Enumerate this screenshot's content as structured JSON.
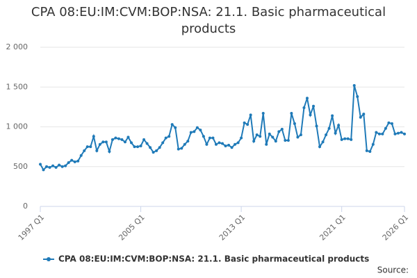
{
  "chart_data": {
    "type": "line",
    "title": "CPA 08:EU:IM:CVM:BOP:NSA: 21.1. Basic pharmaceutical products",
    "source": "Source:",
    "categories": [
      "1997 Q1",
      null,
      null,
      null,
      null,
      null,
      null,
      null,
      null,
      null,
      null,
      null,
      null,
      null,
      null,
      null,
      null,
      null,
      null,
      null,
      null,
      null,
      null,
      null,
      null,
      null,
      null,
      null,
      null,
      null,
      null,
      null,
      "2005 Q1",
      null,
      null,
      null,
      null,
      null,
      null,
      null,
      null,
      null,
      null,
      null,
      null,
      null,
      null,
      null,
      null,
      null,
      null,
      null,
      null,
      null,
      null,
      null,
      null,
      null,
      null,
      null,
      null,
      null,
      null,
      null,
      "2013 Q1",
      null,
      null,
      null,
      null,
      null,
      null,
      null,
      null,
      null,
      null,
      null,
      null,
      null,
      null,
      null,
      null,
      null,
      null,
      null,
      null,
      null,
      null,
      null,
      null,
      null,
      null,
      null,
      null,
      null,
      null,
      null,
      "2021 Q1",
      null,
      null,
      null,
      null,
      null,
      null,
      null,
      null,
      null,
      null,
      null,
      null,
      null,
      null,
      null,
      null,
      null,
      null,
      null,
      "2026 Q1"
    ],
    "series": [
      {
        "name": "CPA 08:EU:IM:CVM:BOP:NSA: 21.1. Basic pharmaceutical products",
        "color": "#1f7ab8",
        "values": [
          530,
          460,
          500,
          490,
          510,
          490,
          520,
          500,
          510,
          550,
          580,
          560,
          570,
          640,
          700,
          750,
          750,
          880,
          700,
          780,
          810,
          810,
          690,
          840,
          860,
          850,
          840,
          810,
          870,
          800,
          750,
          750,
          760,
          840,
          790,
          740,
          680,
          700,
          740,
          800,
          860,
          880,
          1030,
          990,
          720,
          730,
          780,
          820,
          930,
          940,
          990,
          960,
          880,
          780,
          860,
          860,
          780,
          800,
          790,
          760,
          770,
          740,
          780,
          800,
          860,
          1050,
          1030,
          1150,
          820,
          900,
          880,
          1170,
          780,
          910,
          870,
          820,
          940,
          970,
          830,
          830,
          1170,
          1040,
          870,
          900,
          1240,
          1360,
          1150,
          1260,
          1010,
          750,
          810,
          900,
          980,
          1140,
          920,
          1020,
          840,
          850,
          850,
          840,
          1520,
          1380,
          1120,
          1160,
          700,
          690,
          780,
          930,
          910,
          910,
          980,
          1050,
          1040,
          910,
          920,
          930,
          910
        ]
      }
    ],
    "ylim": [
      0,
      2000
    ],
    "yticks": [
      0,
      500,
      {
        "value": 1000,
        "label": "1 000"
      },
      {
        "value": 1500,
        "label": "1 500"
      },
      {
        "value": 2000,
        "label": "2 000"
      }
    ],
    "grid": true
  }
}
